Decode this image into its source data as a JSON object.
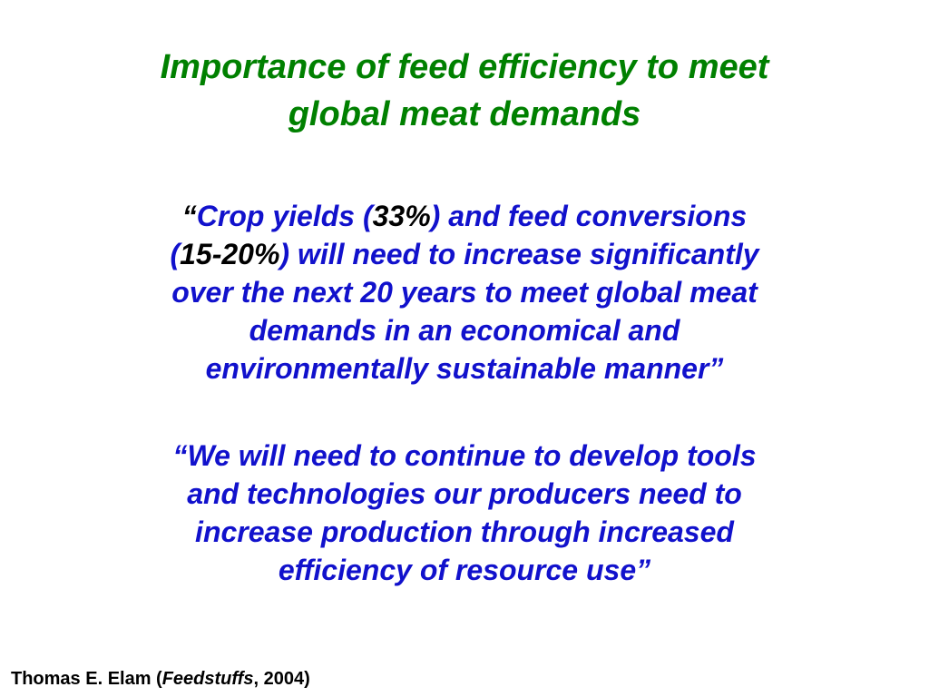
{
  "slide": {
    "title_lines": [
      "Importance of feed efficiency to meet",
      "global meat demands"
    ],
    "quote1": {
      "open_quote": "“",
      "line1_a": "Crop yields (",
      "line1_num": "33%",
      "line1_b": ") and feed conversions",
      "line2_a": "(",
      "line2_num": "15-20%",
      "line2_b": ") will need to increase significantly",
      "line3": "over the next 20 years to meet global meat",
      "line4": "demands in an economical and",
      "line5": "environmentally sustainable manner”"
    },
    "quote2": {
      "lines": [
        "“We will need to continue to develop tools",
        "and technologies our producers need to",
        "increase production through increased",
        "efficiency of resource use”"
      ]
    },
    "citation": {
      "author": "Thomas E. Elam (",
      "journal": "Feedstuffs",
      "year": ", 2004)"
    },
    "colors": {
      "title": "#008000",
      "quote": "#1111cc",
      "highlight": "#000000"
    }
  }
}
